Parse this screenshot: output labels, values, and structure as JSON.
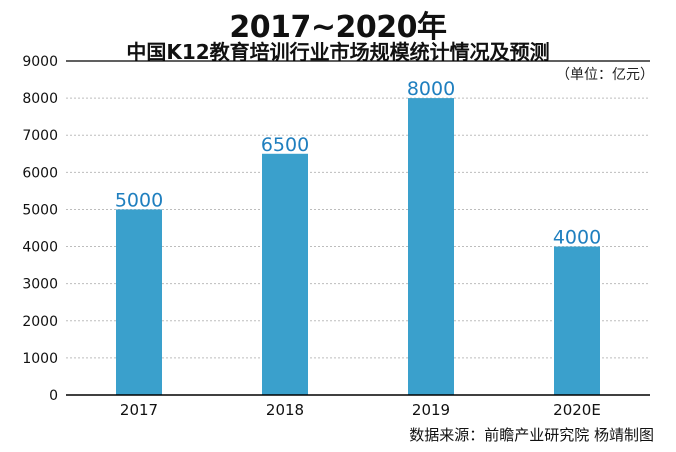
{
  "chart_data": {
    "type": "bar",
    "title": "2017~2020年",
    "subtitle": "中国K12教育培训行业市场规模统计情况及预测",
    "unit": "（单位：亿元）",
    "categories": [
      "2017",
      "2018",
      "2019",
      "2020E"
    ],
    "values": [
      5000,
      6500,
      8000,
      4000
    ],
    "value_labels": [
      "5000",
      "6500",
      "8000",
      "4000"
    ],
    "y_ticks": [
      "0",
      "1000",
      "2000",
      "3000",
      "4000",
      "5000",
      "6000",
      "7000",
      "8000",
      "9000"
    ],
    "ylim": [
      0,
      9000
    ],
    "grid": true,
    "bar_color": "#3aa0cc",
    "label_color": "#1f7fbf"
  },
  "source": "数据来源：前瞻产业研究院  杨靖制图"
}
